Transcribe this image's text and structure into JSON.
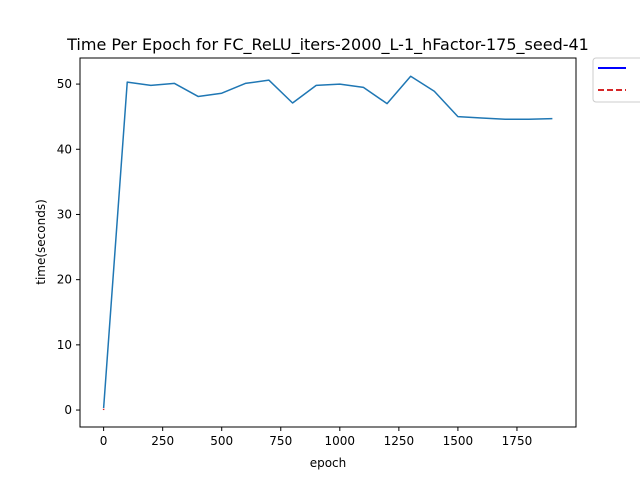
{
  "chart_data": {
    "type": "line",
    "title": "Time Per Epoch for FC_ReLU_iters-2000_L-1_hFactor-175_seed-41",
    "xlabel": "epoch",
    "ylabel": "time(seconds)",
    "xlim": [
      -100,
      2000
    ],
    "ylim": [
      -2.6,
      54
    ],
    "xticks": [
      0,
      250,
      500,
      750,
      1000,
      1250,
      1500,
      1750
    ],
    "yticks": [
      0,
      10,
      20,
      30,
      40,
      50
    ],
    "grid": false,
    "legend": {
      "placement": "outside-top-right",
      "entries": [
        {
          "label": "",
          "color": "#0000ff",
          "style": "solid"
        },
        {
          "label": "",
          "color": "#d62728",
          "style": "dashed"
        }
      ]
    },
    "series": [
      {
        "color": "#1f77b4",
        "style": "solid",
        "x": [
          0,
          100,
          200,
          300,
          400,
          500,
          600,
          700,
          800,
          900,
          1000,
          1100,
          1200,
          1300,
          1400,
          1500,
          1600,
          1700,
          1800,
          1900
        ],
        "y": [
          0.3,
          50.3,
          49.8,
          50.1,
          48.1,
          48.6,
          50.1,
          50.6,
          47.1,
          49.8,
          50.0,
          49.5,
          47.0,
          51.2,
          48.9,
          45.0,
          44.8,
          44.6,
          44.6,
          44.7
        ]
      },
      {
        "color": "#d62728",
        "style": "dashed",
        "x": [
          0,
          0
        ],
        "y": [
          0,
          0.2
        ]
      }
    ]
  }
}
